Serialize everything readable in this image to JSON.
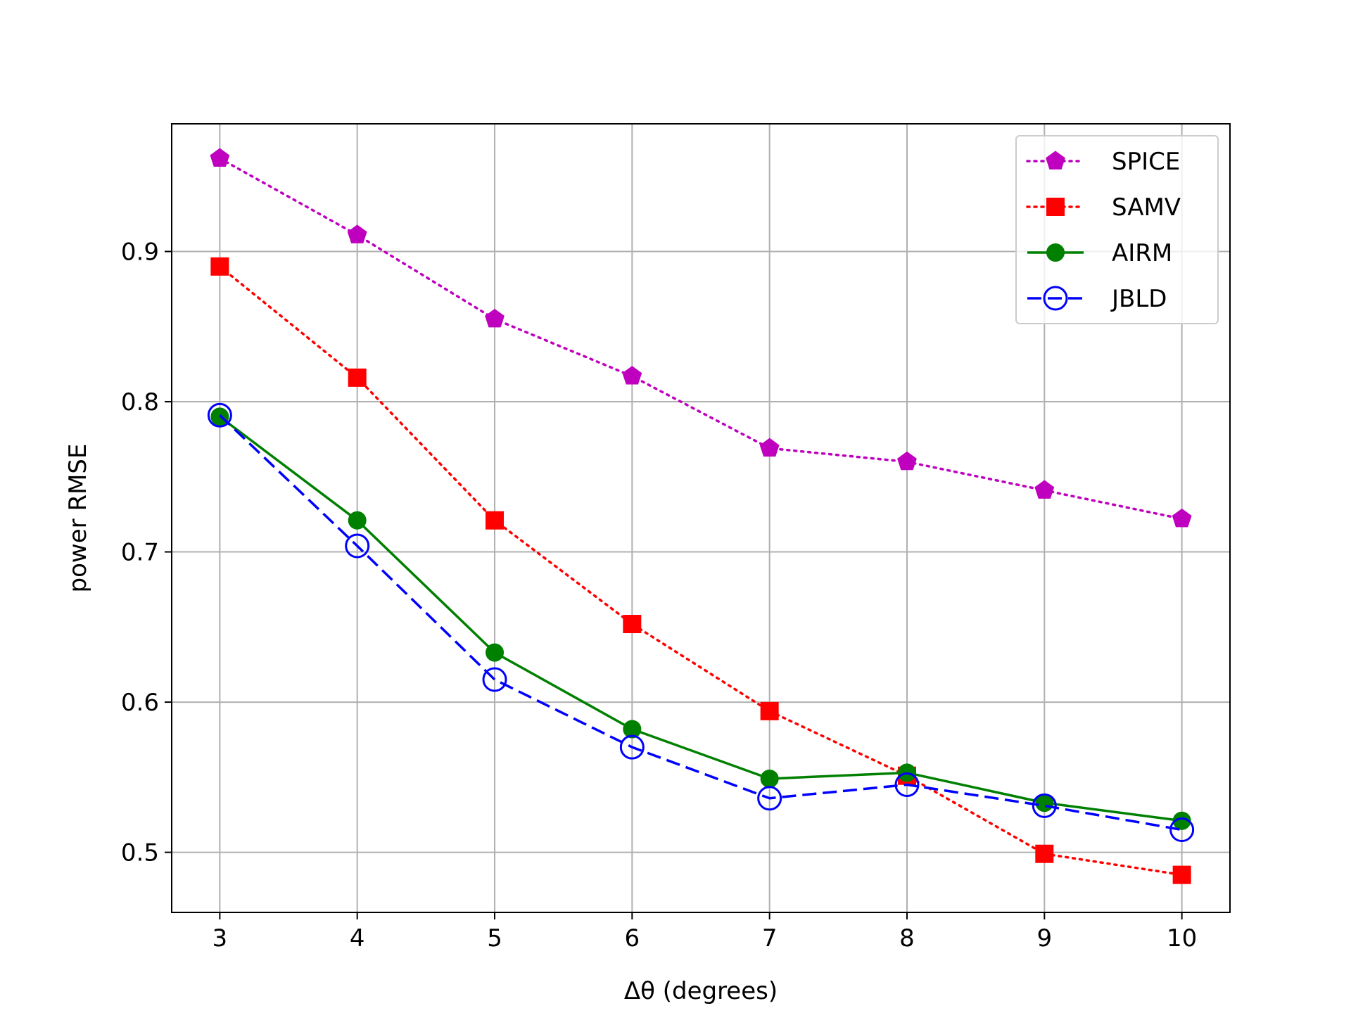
{
  "chart_data": {
    "type": "line",
    "xlabel": "Δθ (degrees)",
    "ylabel": "power RMSE",
    "x": [
      3,
      4,
      5,
      6,
      7,
      8,
      9,
      10
    ],
    "xlim": [
      2.65,
      10.35
    ],
    "ylim": [
      0.46,
      0.985
    ],
    "xticks": [
      "3",
      "4",
      "5",
      "6",
      "7",
      "8",
      "9",
      "10"
    ],
    "yticks": [
      "0.5",
      "0.6",
      "0.7",
      "0.8",
      "0.9"
    ],
    "ytick_values": [
      0.5,
      0.6,
      0.7,
      0.8,
      0.9
    ],
    "grid": true,
    "legend_position": "top-right",
    "series": [
      {
        "name": "SPICE",
        "values": [
          0.962,
          0.911,
          0.855,
          0.817,
          0.769,
          0.76,
          0.741,
          0.722
        ],
        "color": "#bf00bf",
        "linestyle": "dotted",
        "marker": "pentagon"
      },
      {
        "name": "SAMV",
        "values": [
          0.89,
          0.816,
          0.721,
          0.652,
          0.594,
          0.551,
          0.499,
          0.485
        ],
        "color": "#ff0000",
        "linestyle": "dotted",
        "marker": "square"
      },
      {
        "name": "AIRM",
        "values": [
          0.79,
          0.721,
          0.633,
          0.582,
          0.549,
          0.553,
          0.533,
          0.521
        ],
        "color": "#008000",
        "linestyle": "solid",
        "marker": "filled-circle"
      },
      {
        "name": "JBLD",
        "values": [
          0.791,
          0.704,
          0.615,
          0.57,
          0.536,
          0.545,
          0.531,
          0.515
        ],
        "color": "#0000ff",
        "linestyle": "dashed",
        "marker": "open-circle"
      }
    ]
  }
}
